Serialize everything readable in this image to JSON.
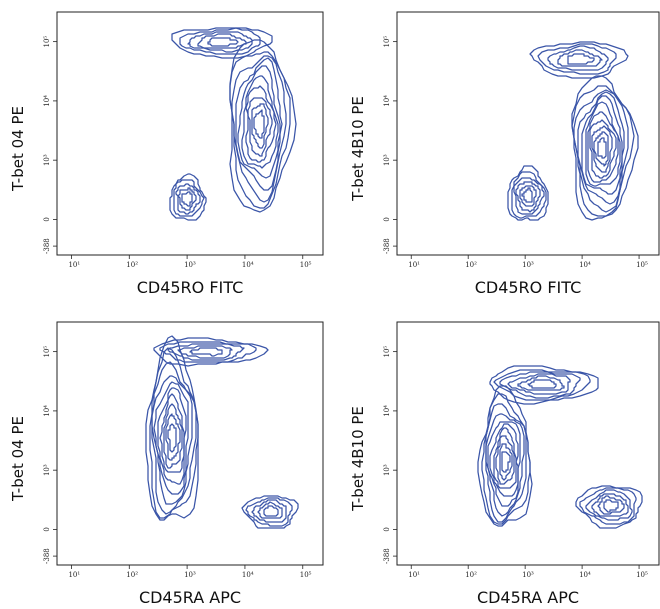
{
  "colors": {
    "contour": "#3a55a8",
    "axis": "#222222"
  },
  "chart_data": [
    {
      "type": "contour",
      "xlabel": "CD45RO FITC",
      "ylabel": "T-bet 04 PE",
      "x_ticks": [
        "10¹",
        "10²",
        "10³",
        "10⁴",
        "10⁵"
      ],
      "y_ticks": [
        "-388",
        "0",
        "10³",
        "10⁴",
        "10⁵"
      ],
      "populations": [
        {
          "x_log": 3.0,
          "y_level": 0.35,
          "rx_log": 0.3,
          "ry_level": 0.38,
          "rings": 5
        },
        {
          "x_log": 4.25,
          "y_level": 1.6,
          "rx_log": 0.55,
          "ry_level": 1.45,
          "rings": 10
        },
        {
          "x_log": 3.6,
          "y_level": 3.0,
          "rx_log": 0.85,
          "ry_level": 0.25,
          "rings": 5
        }
      ]
    },
    {
      "type": "contour",
      "xlabel": "CD45RO FITC",
      "ylabel": "T-bet 4B10 PE",
      "x_ticks": [
        "10¹",
        "10²",
        "10³",
        "10⁴",
        "10⁵"
      ],
      "y_ticks": [
        "-388",
        "0",
        "10³",
        "10⁴",
        "10⁵"
      ],
      "populations": [
        {
          "x_log": 3.05,
          "y_level": 0.4,
          "rx_log": 0.35,
          "ry_level": 0.45,
          "rings": 6
        },
        {
          "x_log": 4.35,
          "y_level": 1.2,
          "rx_log": 0.55,
          "ry_level": 1.2,
          "rings": 11
        },
        {
          "x_log": 3.95,
          "y_level": 2.7,
          "rx_log": 0.8,
          "ry_level": 0.3,
          "rings": 5
        }
      ]
    },
    {
      "type": "contour",
      "xlabel": "CD45RA APC",
      "ylabel": "T-bet 04 PE",
      "x_ticks": [
        "10¹",
        "10²",
        "10³",
        "10⁴",
        "10⁵"
      ],
      "y_ticks": [
        "-388",
        "0",
        "10³",
        "10⁴",
        "10⁵"
      ],
      "populations": [
        {
          "x_log": 2.75,
          "y_level": 1.55,
          "rx_log": 0.45,
          "ry_level": 1.5,
          "rings": 10
        },
        {
          "x_log": 3.35,
          "y_level": 3.0,
          "rx_log": 0.95,
          "ry_level": 0.22,
          "rings": 5
        },
        {
          "x_log": 4.45,
          "y_level": 0.3,
          "rx_log": 0.45,
          "ry_level": 0.28,
          "rings": 5
        }
      ]
    },
    {
      "type": "contour",
      "xlabel": "CD45RA APC",
      "ylabel": "T-bet 4B10 PE",
      "x_ticks": [
        "10¹",
        "10²",
        "10³",
        "10⁴",
        "10⁵"
      ],
      "y_ticks": [
        "-388",
        "0",
        "10³",
        "10⁴",
        "10⁵"
      ],
      "populations": [
        {
          "x_log": 2.65,
          "y_level": 1.15,
          "rx_log": 0.45,
          "ry_level": 1.15,
          "rings": 10
        },
        {
          "x_log": 3.3,
          "y_level": 2.45,
          "rx_log": 0.95,
          "ry_level": 0.3,
          "rings": 6
        },
        {
          "x_log": 4.5,
          "y_level": 0.4,
          "rx_log": 0.55,
          "ry_level": 0.35,
          "rings": 6
        }
      ]
    }
  ]
}
